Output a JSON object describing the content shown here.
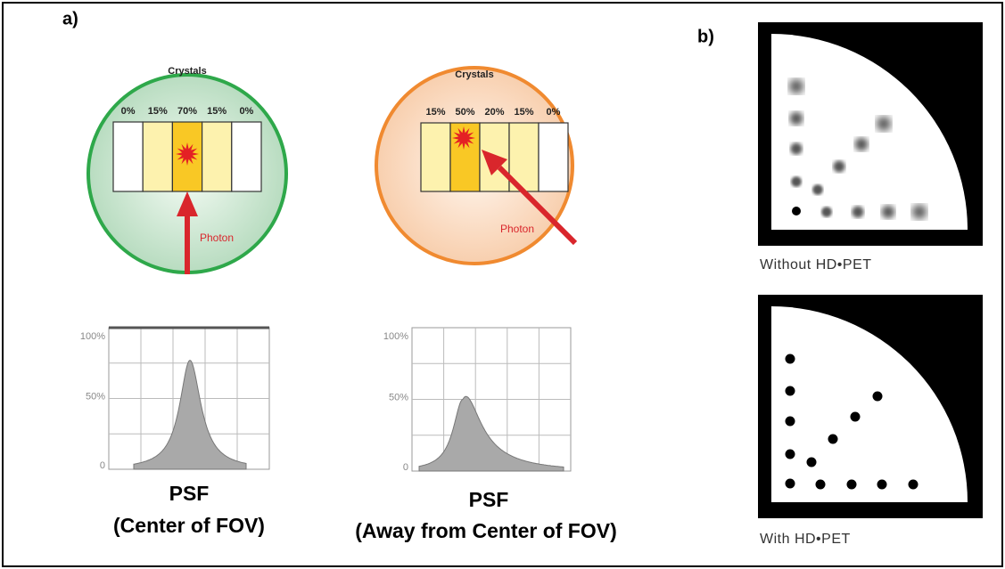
{
  "panel_a": {
    "label": "a)",
    "detectors": [
      {
        "title": "Crystals",
        "percentages": [
          "0%",
          "15%",
          "70%",
          "15%",
          "0%"
        ],
        "photon_label": "Photon"
      },
      {
        "title": "Crystals",
        "percentages": [
          "15%",
          "50%",
          "20%",
          "15%",
          "0%"
        ],
        "photon_label": "Photon"
      }
    ],
    "psf_plots": [
      {
        "y_labels": [
          "100%",
          "50%",
          "0"
        ],
        "caption_title": "PSF",
        "caption": "(Center of FOV)"
      },
      {
        "y_labels": [
          "100%",
          "50%",
          "0"
        ],
        "caption_title": "PSF",
        "caption": "(Away from Center of FOV)"
      }
    ]
  },
  "panel_b": {
    "label": "b)",
    "images": [
      {
        "caption": "Without HD•PET"
      },
      {
        "caption": "With HD•PET"
      }
    ]
  }
}
